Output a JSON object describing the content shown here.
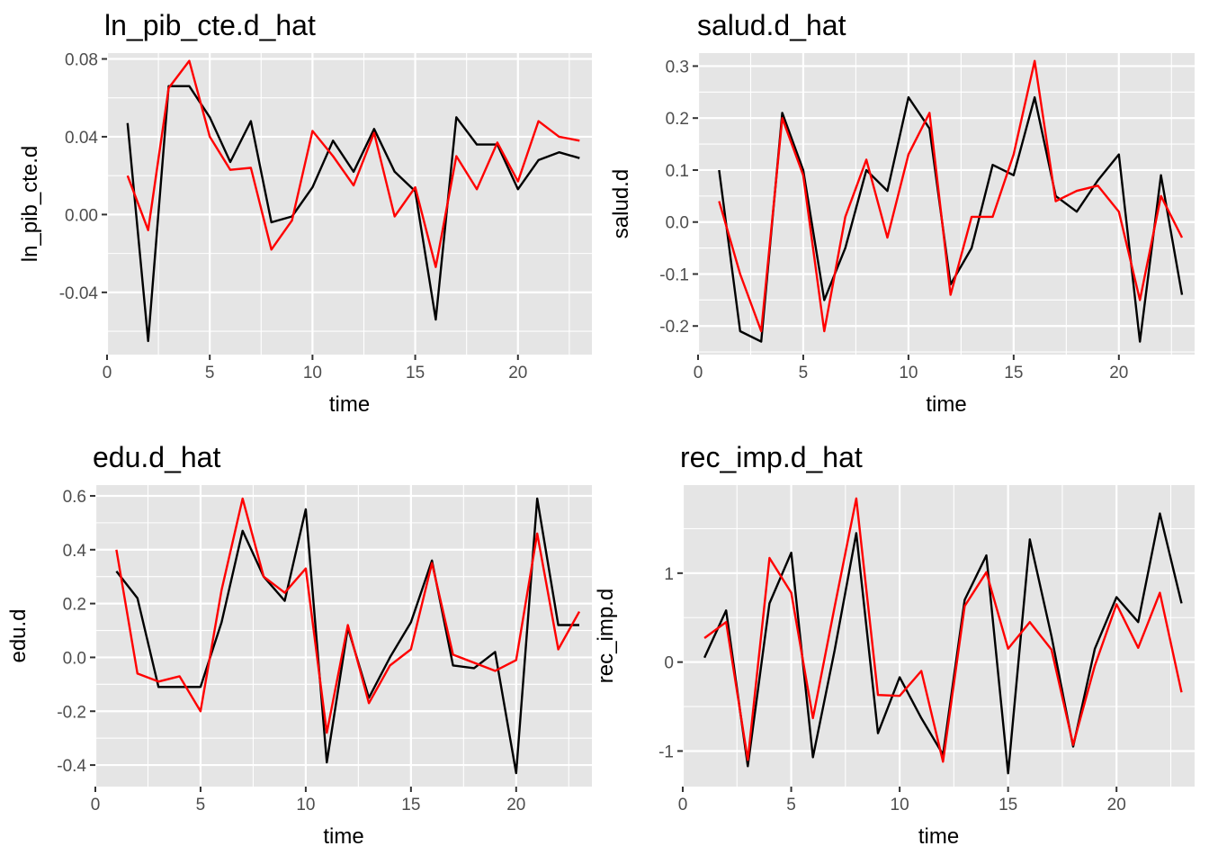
{
  "colors": {
    "panel_bg": "#e5e5e5",
    "grid": "#ffffff",
    "actual": "#000000",
    "fitted": "#ff0000"
  },
  "chart_data": [
    {
      "type": "line",
      "title": "ln_pib_cte.d_hat",
      "xlabel": "time",
      "ylabel": "ln_pib_cte.d",
      "xlim": [
        0,
        23.6
      ],
      "ylim": [
        -0.072,
        0.083
      ],
      "xticks": [
        0,
        5,
        10,
        15,
        20
      ],
      "yticks": [
        -0.04,
        0.0,
        0.04,
        0.08
      ],
      "ytick_labels": [
        "-0.04",
        "0.00",
        "0.04",
        "0.08"
      ],
      "grid": true,
      "x": [
        1,
        2,
        3,
        4,
        5,
        6,
        7,
        8,
        9,
        10,
        11,
        12,
        13,
        14,
        15,
        16,
        17,
        18,
        19,
        20,
        21,
        22,
        23
      ],
      "series": [
        {
          "color": "#000000",
          "values": [
            0.047,
            -0.065,
            0.066,
            0.066,
            0.05,
            0.027,
            0.048,
            -0.004,
            -0.001,
            0.014,
            0.038,
            0.022,
            0.044,
            0.022,
            0.012,
            -0.054,
            0.05,
            0.036,
            0.036,
            0.013,
            0.028,
            0.032,
            0.029
          ]
        },
        {
          "color": "#ff0000",
          "values": [
            0.02,
            -0.008,
            0.065,
            0.079,
            0.04,
            0.023,
            0.024,
            -0.018,
            -0.003,
            0.043,
            0.03,
            0.015,
            0.042,
            -0.001,
            0.014,
            -0.027,
            0.03,
            0.013,
            0.037,
            0.017,
            0.048,
            0.04,
            0.038
          ]
        }
      ]
    },
    {
      "type": "line",
      "title": "salud.d_hat",
      "xlabel": "time",
      "ylabel": "salud.d",
      "xlim": [
        0,
        23.6
      ],
      "ylim": [
        -0.255,
        0.325
      ],
      "xticks": [
        0,
        5,
        10,
        15,
        20
      ],
      "yticks": [
        -0.2,
        -0.1,
        0.0,
        0.1,
        0.2,
        0.3
      ],
      "ytick_labels": [
        "-0.2",
        "-0.1",
        "0.0",
        "0.1",
        "0.2",
        "0.3"
      ],
      "grid": true,
      "x": [
        1,
        2,
        3,
        4,
        5,
        6,
        7,
        8,
        9,
        10,
        11,
        12,
        13,
        14,
        15,
        16,
        17,
        18,
        19,
        20,
        21,
        22,
        23
      ],
      "series": [
        {
          "color": "#000000",
          "values": [
            0.1,
            -0.21,
            -0.23,
            0.21,
            0.1,
            -0.15,
            -0.05,
            0.1,
            0.06,
            0.24,
            0.18,
            -0.12,
            -0.05,
            0.11,
            0.09,
            0.24,
            0.05,
            0.02,
            0.08,
            0.13,
            -0.23,
            0.09,
            -0.14
          ]
        },
        {
          "color": "#ff0000",
          "values": [
            0.04,
            -0.1,
            -0.21,
            0.2,
            0.09,
            -0.21,
            0.01,
            0.12,
            -0.03,
            0.13,
            0.21,
            -0.14,
            0.01,
            0.01,
            0.13,
            0.31,
            0.04,
            0.06,
            0.07,
            0.02,
            -0.15,
            0.05,
            -0.03
          ]
        }
      ]
    },
    {
      "type": "line",
      "title": "edu.d_hat",
      "xlabel": "time",
      "ylabel": "edu.d",
      "xlim": [
        0,
        23.6
      ],
      "ylim": [
        -0.48,
        0.64
      ],
      "xticks": [
        0,
        5,
        10,
        15,
        20
      ],
      "yticks": [
        -0.4,
        -0.2,
        0.0,
        0.2,
        0.4,
        0.6
      ],
      "ytick_labels": [
        "-0.4",
        "-0.2",
        "0.0",
        "0.2",
        "0.4",
        "0.6"
      ],
      "grid": true,
      "x": [
        1,
        2,
        3,
        4,
        5,
        6,
        7,
        8,
        9,
        10,
        11,
        12,
        13,
        14,
        15,
        16,
        17,
        18,
        19,
        20,
        21,
        22,
        23
      ],
      "series": [
        {
          "color": "#000000",
          "values": [
            0.32,
            0.22,
            -0.11,
            -0.11,
            -0.11,
            0.13,
            0.47,
            0.3,
            0.21,
            0.55,
            -0.39,
            0.11,
            -0.15,
            0.0,
            0.13,
            0.36,
            -0.03,
            -0.04,
            0.02,
            -0.43,
            0.59,
            0.12,
            0.12
          ]
        },
        {
          "color": "#ff0000",
          "values": [
            0.4,
            -0.06,
            -0.09,
            -0.07,
            -0.2,
            0.25,
            0.59,
            0.3,
            0.24,
            0.33,
            -0.28,
            0.12,
            -0.17,
            -0.03,
            0.03,
            0.35,
            0.01,
            -0.02,
            -0.05,
            -0.01,
            0.46,
            0.03,
            0.17
          ]
        }
      ]
    },
    {
      "type": "line",
      "title": "rec_imp.d_hat",
      "xlabel": "time",
      "ylabel": "rec_imp.d",
      "xlim": [
        0,
        23.6
      ],
      "ylim": [
        -1.4,
        1.99
      ],
      "xticks": [
        0,
        5,
        10,
        15,
        20
      ],
      "yticks": [
        -1,
        0,
        1
      ],
      "ytick_labels": [
        "-1",
        "0",
        "1"
      ],
      "grid": true,
      "x": [
        1,
        2,
        3,
        4,
        5,
        6,
        7,
        8,
        9,
        10,
        11,
        12,
        13,
        14,
        15,
        16,
        17,
        18,
        19,
        20,
        21,
        22,
        23
      ],
      "series": [
        {
          "color": "#000000",
          "values": [
            0.05,
            0.58,
            -1.17,
            0.66,
            1.23,
            -1.07,
            0.13,
            1.45,
            -0.8,
            -0.17,
            -0.63,
            -1.04,
            0.7,
            1.2,
            -1.25,
            1.38,
            0.29,
            -0.95,
            0.15,
            0.73,
            0.45,
            1.67,
            0.66
          ]
        },
        {
          "color": "#ff0000",
          "values": [
            0.27,
            0.45,
            -1.1,
            1.17,
            0.78,
            -0.63,
            0.62,
            1.84,
            -0.37,
            -0.38,
            -0.1,
            -1.12,
            0.63,
            1.01,
            0.15,
            0.45,
            0.14,
            -0.93,
            -0.04,
            0.65,
            0.16,
            0.78,
            -0.34
          ]
        }
      ]
    }
  ]
}
